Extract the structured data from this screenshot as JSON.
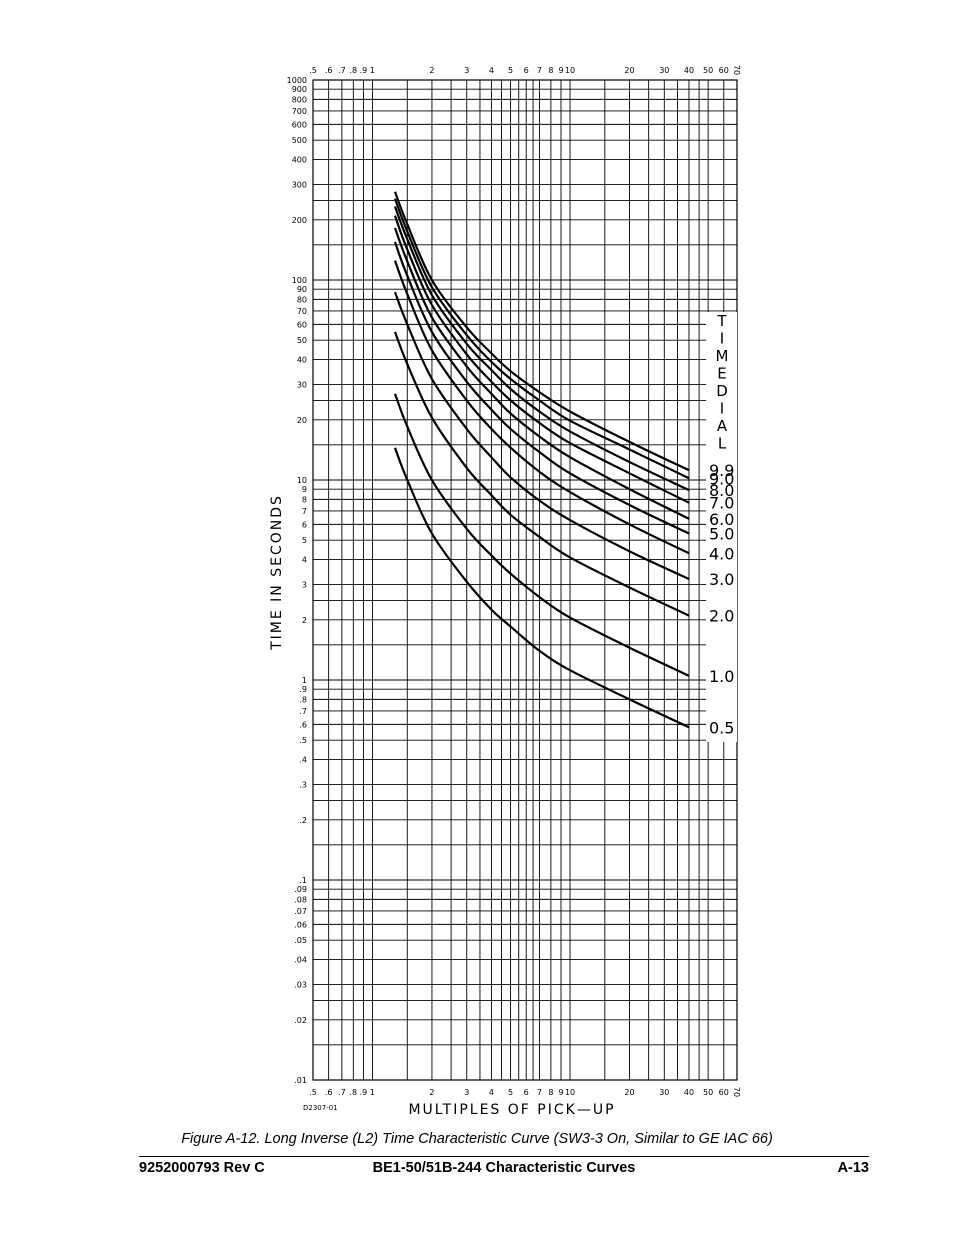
{
  "chart_data": {
    "type": "line",
    "title": "",
    "xlabel": "MULTIPLES OF PICK—UP",
    "ylabel": "TIME IN SECONDS",
    "xscale": "log",
    "yscale": "log",
    "xlim": [
      0.5,
      70
    ],
    "ylim": [
      0.01,
      1000
    ],
    "grid": true,
    "x_tick_labels": [
      {
        "v": 0.5,
        "t": ".5"
      },
      {
        "v": 0.6,
        "t": ".6"
      },
      {
        "v": 0.7,
        "t": ".7"
      },
      {
        "v": 0.8,
        "t": ".8"
      },
      {
        "v": 0.9,
        "t": ".9"
      },
      {
        "v": 1,
        "t": "1"
      },
      {
        "v": 2,
        "t": "2"
      },
      {
        "v": 3,
        "t": "3"
      },
      {
        "v": 4,
        "t": "4"
      },
      {
        "v": 5,
        "t": "5"
      },
      {
        "v": 6,
        "t": "6"
      },
      {
        "v": 7,
        "t": "7"
      },
      {
        "v": 8,
        "t": "8"
      },
      {
        "v": 9,
        "t": "9"
      },
      {
        "v": 10,
        "t": "10"
      },
      {
        "v": 20,
        "t": "20"
      },
      {
        "v": 30,
        "t": "30"
      },
      {
        "v": 40,
        "t": "40"
      },
      {
        "v": 50,
        "t": "50"
      },
      {
        "v": 60,
        "t": "60"
      },
      {
        "v": 70,
        "t": "70"
      }
    ],
    "y_tick_labels": [
      {
        "v": 1000,
        "t": "1000"
      },
      {
        "v": 900,
        "t": "900"
      },
      {
        "v": 800,
        "t": "800"
      },
      {
        "v": 700,
        "t": "700"
      },
      {
        "v": 600,
        "t": "600"
      },
      {
        "v": 500,
        "t": "500"
      },
      {
        "v": 400,
        "t": "400"
      },
      {
        "v": 300,
        "t": "300"
      },
      {
        "v": 200,
        "t": "200"
      },
      {
        "v": 100,
        "t": "100"
      },
      {
        "v": 90,
        "t": "90"
      },
      {
        "v": 80,
        "t": "80"
      },
      {
        "v": 70,
        "t": "70"
      },
      {
        "v": 60,
        "t": "60"
      },
      {
        "v": 50,
        "t": "50"
      },
      {
        "v": 40,
        "t": "40"
      },
      {
        "v": 30,
        "t": "30"
      },
      {
        "v": 20,
        "t": "20"
      },
      {
        "v": 10,
        "t": "10"
      },
      {
        "v": 9,
        "t": "9"
      },
      {
        "v": 8,
        "t": "8"
      },
      {
        "v": 7,
        "t": "7"
      },
      {
        "v": 6,
        "t": "6"
      },
      {
        "v": 5,
        "t": "5"
      },
      {
        "v": 4,
        "t": "4"
      },
      {
        "v": 3,
        "t": "3"
      },
      {
        "v": 2,
        "t": "2"
      },
      {
        "v": 1,
        "t": "1"
      },
      {
        "v": 0.9,
        "t": ".9"
      },
      {
        "v": 0.8,
        "t": ".8"
      },
      {
        "v": 0.7,
        "t": ".7"
      },
      {
        "v": 0.6,
        "t": ".6"
      },
      {
        "v": 0.5,
        "t": ".5"
      },
      {
        "v": 0.4,
        "t": ".4"
      },
      {
        "v": 0.3,
        "t": ".3"
      },
      {
        "v": 0.2,
        "t": ".2"
      },
      {
        "v": 0.1,
        "t": ".1"
      },
      {
        "v": 0.09,
        "t": ".09"
      },
      {
        "v": 0.08,
        "t": ".08"
      },
      {
        "v": 0.07,
        "t": ".07"
      },
      {
        "v": 0.06,
        "t": ".06"
      },
      {
        "v": 0.05,
        "t": ".05"
      },
      {
        "v": 0.04,
        "t": ".04"
      },
      {
        "v": 0.03,
        "t": ".03"
      },
      {
        "v": 0.02,
        "t": ".02"
      },
      {
        "v": 0.01,
        "t": ".01"
      }
    ],
    "curve_label_title": "TIMEDIAL",
    "series": [
      {
        "name": "9.9",
        "x": [
          1.3,
          1.5,
          2,
          3,
          4,
          5,
          7,
          10,
          20,
          40
        ],
        "y": [
          276,
          190,
          100,
          58,
          43,
          35,
          27.5,
          22,
          15.5,
          11.2
        ]
      },
      {
        "name": "9.0",
        "x": [
          1.3,
          1.5,
          2,
          3,
          4,
          5,
          7,
          10,
          20,
          40
        ],
        "y": [
          255,
          175,
          92,
          53,
          39,
          32,
          25,
          19.8,
          14.2,
          10.2
        ]
      },
      {
        "name": "8.0",
        "x": [
          1.3,
          1.5,
          2,
          3,
          4,
          5,
          7,
          10,
          20,
          40
        ],
        "y": [
          233,
          160,
          84,
          48,
          35.5,
          28.5,
          22,
          17.5,
          12.3,
          8.9
        ]
      },
      {
        "name": "7.0",
        "x": [
          1.3,
          1.5,
          2,
          3,
          4,
          5,
          7,
          10,
          20,
          40
        ],
        "y": [
          210,
          142,
          75,
          42.5,
          31,
          25,
          19.3,
          15.3,
          10.8,
          7.7
        ]
      },
      {
        "name": "6.0",
        "x": [
          1.3,
          1.5,
          2,
          3,
          4,
          5,
          7,
          10,
          20,
          40
        ],
        "y": [
          182,
          124,
          65,
          37,
          27,
          21.5,
          16.5,
          13,
          9,
          6.4
        ]
      },
      {
        "name": "5.0",
        "x": [
          1.3,
          1.5,
          2,
          3,
          4,
          5,
          7,
          10,
          20,
          40
        ],
        "y": [
          155,
          105,
          55,
          31,
          22.5,
          18,
          13.8,
          10.8,
          7.5,
          5.4
        ]
      },
      {
        "name": "4.0",
        "x": [
          1.3,
          1.5,
          2,
          3,
          4,
          5,
          7,
          10,
          20,
          40
        ],
        "y": [
          125,
          85,
          44.5,
          25,
          18,
          14.5,
          11,
          8.7,
          6,
          4.3
        ]
      },
      {
        "name": "3.0",
        "x": [
          1.3,
          1.5,
          2,
          3,
          4,
          5,
          7,
          10,
          20,
          40
        ],
        "y": [
          87,
          60,
          32,
          18,
          13,
          10.3,
          7.9,
          6.3,
          4.4,
          3.2
        ]
      },
      {
        "name": "2.0",
        "x": [
          1.3,
          1.5,
          2,
          3,
          4,
          5,
          7,
          10,
          20,
          40
        ],
        "y": [
          55,
          38,
          20.5,
          11.5,
          8.4,
          6.7,
          5.2,
          4.1,
          2.9,
          2.1
        ]
      },
      {
        "name": "1.0",
        "x": [
          1.3,
          1.5,
          2,
          3,
          4,
          5,
          7,
          10,
          20,
          40
        ],
        "y": [
          27,
          18.5,
          10,
          5.7,
          4.2,
          3.4,
          2.6,
          2.05,
          1.45,
          1.05
        ]
      },
      {
        "name": "0.5",
        "x": [
          1.3,
          1.5,
          2,
          3,
          4,
          5,
          7,
          10,
          20,
          40
        ],
        "y": [
          14.5,
          10,
          5.4,
          3.1,
          2.25,
          1.85,
          1.4,
          1.12,
          0.8,
          0.58
        ]
      }
    ]
  },
  "drawing_number": "D2307-01",
  "caption": "Figure A-12. Long Inverse (L2) Time Characteristic Curve (SW3-3 On, Similar to GE IAC 66)",
  "footer": {
    "left": "9252000793 Rev C",
    "center": "BE1-50/51B-244 Characteristic Curves",
    "right": "A-13"
  }
}
